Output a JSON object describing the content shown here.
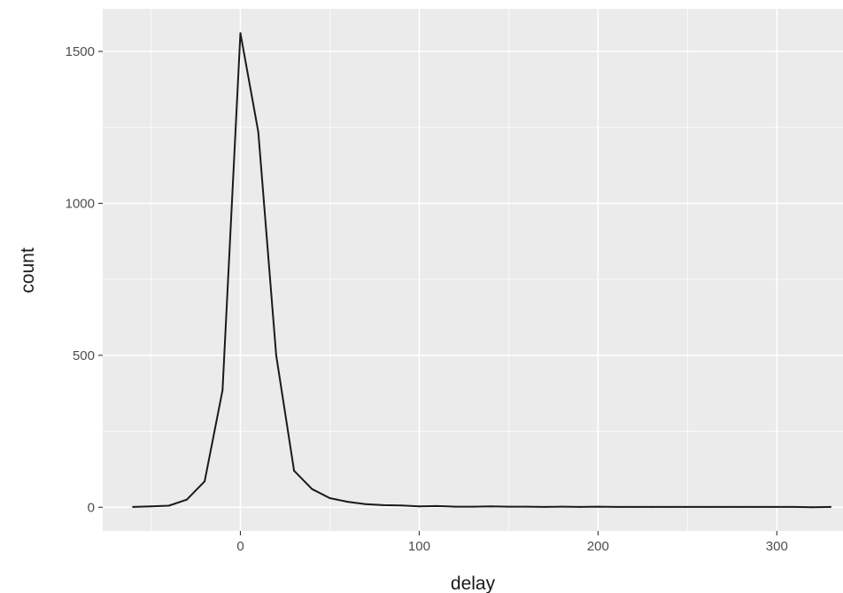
{
  "chart_data": {
    "type": "line",
    "title": "",
    "xlabel": "delay",
    "ylabel": "count",
    "xlim": [
      -77,
      337
    ],
    "ylim": [
      -78,
      1640
    ],
    "x_ticks": [
      0,
      100,
      200,
      300
    ],
    "x_tick_labels": [
      "0",
      "100",
      "200",
      "300"
    ],
    "y_ticks": [
      0,
      500,
      1000,
      1500
    ],
    "y_tick_labels": [
      "0",
      "500",
      "1000",
      "1500"
    ],
    "grid": true,
    "line_color": "#1a1a1a",
    "panel_color": "#ebebeb",
    "legend": "none",
    "series": [
      {
        "x": [
          -60,
          -50,
          -40,
          -30,
          -20,
          -10,
          0,
          10,
          20,
          30,
          40,
          50,
          60,
          70,
          80,
          90,
          100,
          110,
          120,
          130,
          140,
          150,
          160,
          170,
          180,
          190,
          200,
          210,
          220,
          230,
          240,
          250,
          260,
          270,
          280,
          290,
          300,
          310,
          320,
          330
        ],
        "values": [
          1,
          3,
          5,
          25,
          85,
          385,
          1560,
          1235,
          500,
          120,
          60,
          30,
          18,
          10,
          7,
          6,
          3,
          4,
          2,
          2,
          3,
          2,
          2,
          1,
          2,
          1,
          2,
          1,
          1,
          1,
          1,
          1,
          1,
          1,
          1,
          1,
          1,
          1,
          0,
          1
        ]
      }
    ]
  }
}
